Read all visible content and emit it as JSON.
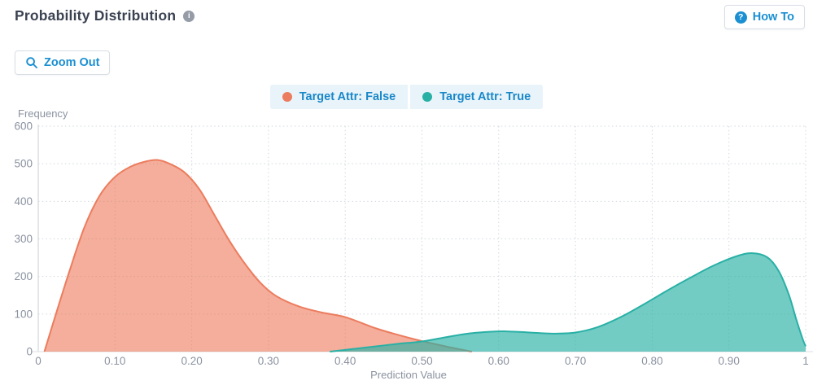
{
  "header": {
    "title": "Probability Distribution",
    "how_to_label": "How To",
    "help_glyph": "?",
    "info_glyph": "i"
  },
  "toolbar": {
    "zoom_out_label": "Zoom Out"
  },
  "theme": {
    "accent_blue": "#1A8FD1",
    "legend_text_blue": "#1987C8",
    "legend_bg": "#E9F4FA",
    "title_color": "#3B4252",
    "axis_text": "#8B92A0",
    "grid_color": "#D3D7DD",
    "y_axis_line": "#D6D9DE",
    "x_axis_line": "#E3E5E9"
  },
  "chart_data": {
    "type": "area",
    "title": "Probability Distribution",
    "xlabel": "Prediction Value",
    "ylabel": "Frequency",
    "xlim": [
      0,
      1
    ],
    "ylim": [
      0,
      600
    ],
    "grid": "dotted",
    "legend_position": "top-center",
    "y_ticks": [
      {
        "v": 0,
        "label": "0"
      },
      {
        "v": 100,
        "label": "100"
      },
      {
        "v": 200,
        "label": "200"
      },
      {
        "v": 300,
        "label": "300"
      },
      {
        "v": 400,
        "label": "400"
      },
      {
        "v": 500,
        "label": "500"
      },
      {
        "v": 600,
        "label": "600"
      }
    ],
    "x_ticks": [
      {
        "v": 0.0,
        "label": "0"
      },
      {
        "v": 0.1,
        "label": "0.10"
      },
      {
        "v": 0.2,
        "label": "0.20"
      },
      {
        "v": 0.3,
        "label": "0.30"
      },
      {
        "v": 0.4,
        "label": "0.40"
      },
      {
        "v": 0.5,
        "label": "0.50"
      },
      {
        "v": 0.6,
        "label": "0.60"
      },
      {
        "v": 0.7,
        "label": "0.70"
      },
      {
        "v": 0.8,
        "label": "0.80"
      },
      {
        "v": 0.9,
        "label": "0.90"
      },
      {
        "v": 1.0,
        "label": "1"
      }
    ],
    "series": [
      {
        "name": "Target Attr: False",
        "stroke": "#EC7C5E",
        "fill": "rgba(236,115,82,0.58)",
        "points": [
          [
            0.008,
            0
          ],
          [
            0.02,
            80
          ],
          [
            0.04,
            210
          ],
          [
            0.06,
            330
          ],
          [
            0.08,
            415
          ],
          [
            0.1,
            465
          ],
          [
            0.12,
            492
          ],
          [
            0.14,
            506
          ],
          [
            0.155,
            510
          ],
          [
            0.17,
            501
          ],
          [
            0.19,
            478
          ],
          [
            0.21,
            432
          ],
          [
            0.23,
            362
          ],
          [
            0.25,
            292
          ],
          [
            0.27,
            232
          ],
          [
            0.29,
            182
          ],
          [
            0.31,
            148
          ],
          [
            0.34,
            120
          ],
          [
            0.37,
            104
          ],
          [
            0.4,
            92
          ],
          [
            0.44,
            62
          ],
          [
            0.47,
            44
          ],
          [
            0.5,
            28
          ],
          [
            0.52,
            19
          ],
          [
            0.54,
            10
          ],
          [
            0.565,
            0
          ]
        ]
      },
      {
        "name": "Target Attr: True",
        "stroke": "#29B0A5",
        "fill": "rgba(41,177,166,0.66)",
        "points": [
          [
            0.38,
            0
          ],
          [
            0.41,
            7
          ],
          [
            0.44,
            14
          ],
          [
            0.47,
            21
          ],
          [
            0.5,
            27
          ],
          [
            0.53,
            38
          ],
          [
            0.56,
            48
          ],
          [
            0.59,
            53
          ],
          [
            0.61,
            54
          ],
          [
            0.64,
            51
          ],
          [
            0.67,
            48
          ],
          [
            0.7,
            51
          ],
          [
            0.73,
            66
          ],
          [
            0.76,
            93
          ],
          [
            0.79,
            127
          ],
          [
            0.82,
            163
          ],
          [
            0.85,
            197
          ],
          [
            0.88,
            229
          ],
          [
            0.91,
            254
          ],
          [
            0.93,
            262
          ],
          [
            0.95,
            251
          ],
          [
            0.965,
            214
          ],
          [
            0.978,
            152
          ],
          [
            0.988,
            84
          ],
          [
            0.996,
            34
          ],
          [
            1.0,
            14
          ]
        ]
      }
    ]
  }
}
